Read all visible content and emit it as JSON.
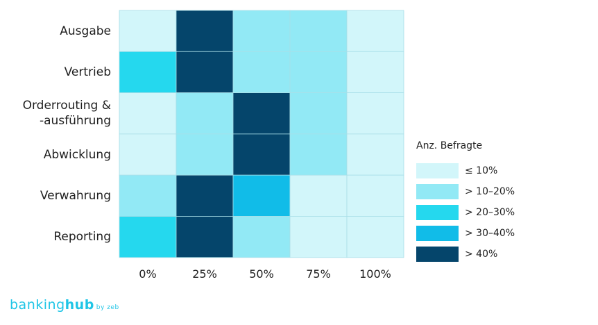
{
  "chart_data": {
    "type": "heatmap",
    "rows": [
      "Ausgabe",
      "Vertrieb",
      "Orderrouting &\n-ausführung",
      "Abwicklung",
      "Verwahrung",
      "Reporting"
    ],
    "columns": [
      "0%",
      "25%",
      "50%",
      "75%",
      "100%"
    ],
    "levels": [
      [
        0,
        4,
        1,
        1,
        0
      ],
      [
        2,
        4,
        1,
        1,
        0
      ],
      [
        0,
        1,
        4,
        1,
        0
      ],
      [
        0,
        1,
        4,
        1,
        0
      ],
      [
        1,
        4,
        3,
        0,
        0
      ],
      [
        2,
        4,
        1,
        0,
        0
      ]
    ],
    "legend": {
      "title": "Anz. Befragte",
      "items": [
        {
          "label": "≤ 10%",
          "color": "#d2f6fa"
        },
        {
          "label": "> 10–20%",
          "color": "#92e9f5"
        },
        {
          "label": "> 20–30%",
          "color": "#25d8ee"
        },
        {
          "label": "> 30–40%",
          "color": "#11bce8"
        },
        {
          "label": "> 40%",
          "color": "#05456b"
        }
      ]
    }
  },
  "brand": {
    "part1": "banking",
    "part2": "hub",
    "suffix": "by zeb"
  }
}
